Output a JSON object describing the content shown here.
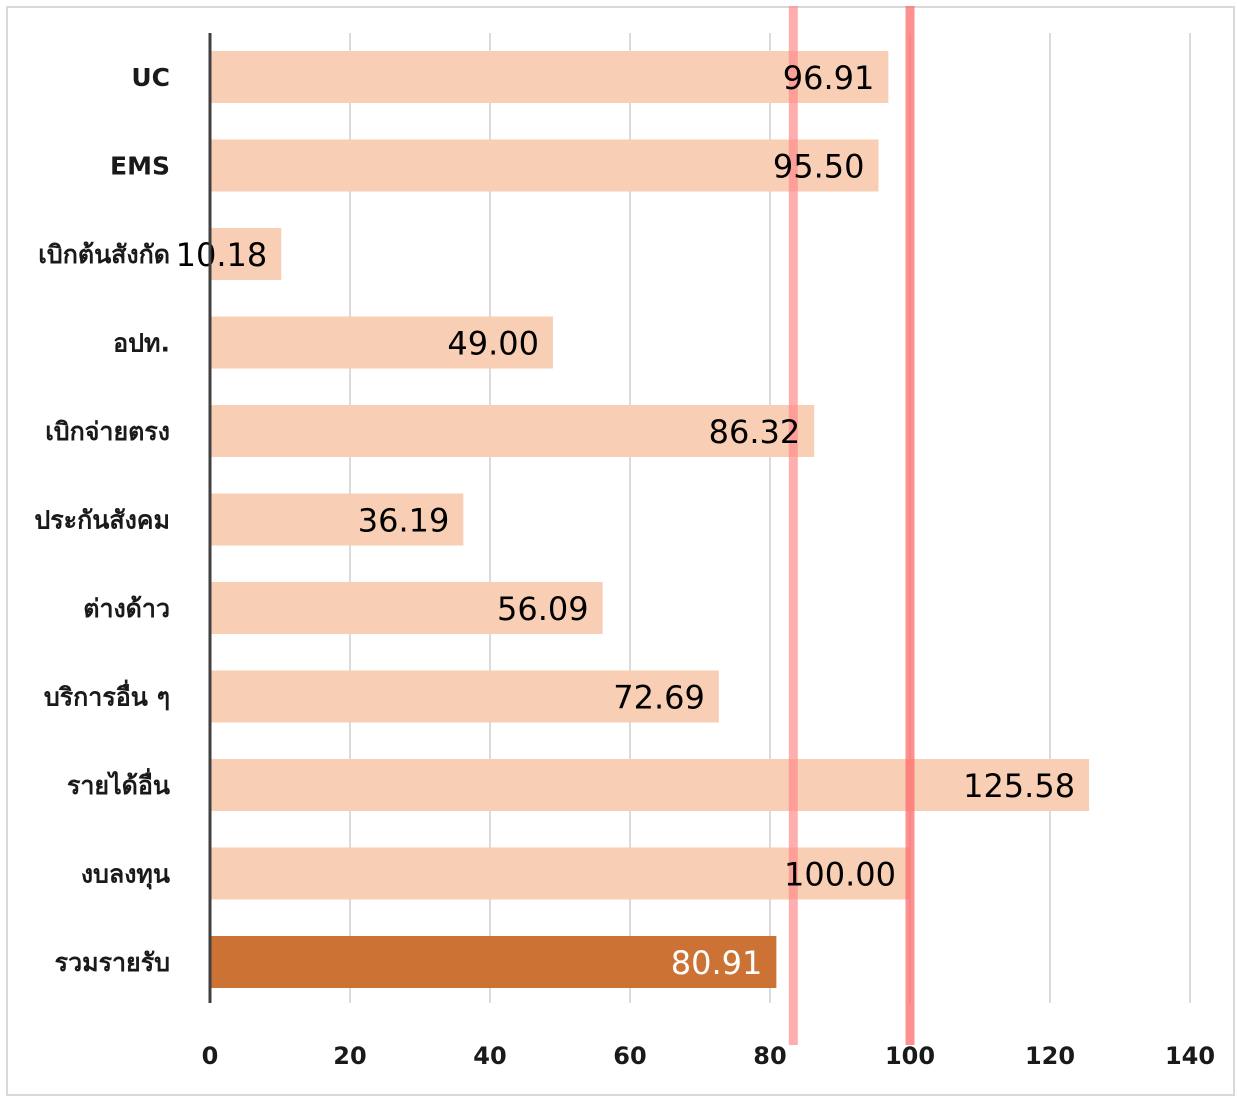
{
  "chart_data": {
    "type": "bar",
    "orientation": "horizontal",
    "categories": [
      "UC",
      "EMS",
      "เบิกต้นสังกัด",
      "อปท.",
      "เบิกจ่ายตรง",
      "ประกันสังคม",
      "ต่างด้าว",
      "บริการอื่น ๆ",
      "รายได้อื่น",
      "งบลงทุน",
      "รวมรายรับ"
    ],
    "values": [
      96.91,
      95.5,
      10.18,
      49.0,
      86.32,
      36.19,
      56.09,
      72.69,
      125.58,
      100.0,
      80.91
    ],
    "value_labels": [
      "96.91",
      "95.50",
      "10.18",
      "49.00",
      "86.32",
      "36.19",
      "56.09",
      "72.69",
      "125.58",
      "100.00",
      "80.91"
    ],
    "highlight_index": 10,
    "xlim": [
      0,
      140
    ],
    "x_ticks": [
      "0",
      "20",
      "40",
      "60",
      "80",
      "100",
      "120",
      "140"
    ],
    "x_tick_values": [
      0,
      20,
      40,
      60,
      80,
      100,
      120,
      140
    ],
    "reference_lines": [
      {
        "value": 83.33,
        "color": "#ff8c8c",
        "opacity": 0.7
      },
      {
        "value": 100,
        "color": "#ff6b6b",
        "opacity": 0.75
      }
    ],
    "grid": true,
    "title": "",
    "xlabel": "",
    "ylabel": "",
    "colors": {
      "bar": "#f8ceb4",
      "bar_highlight": "#cc7235",
      "label_dark": "#000000",
      "label_light": "#ffffff",
      "grid": "#cfcfcf",
      "axis": "#404040"
    }
  }
}
